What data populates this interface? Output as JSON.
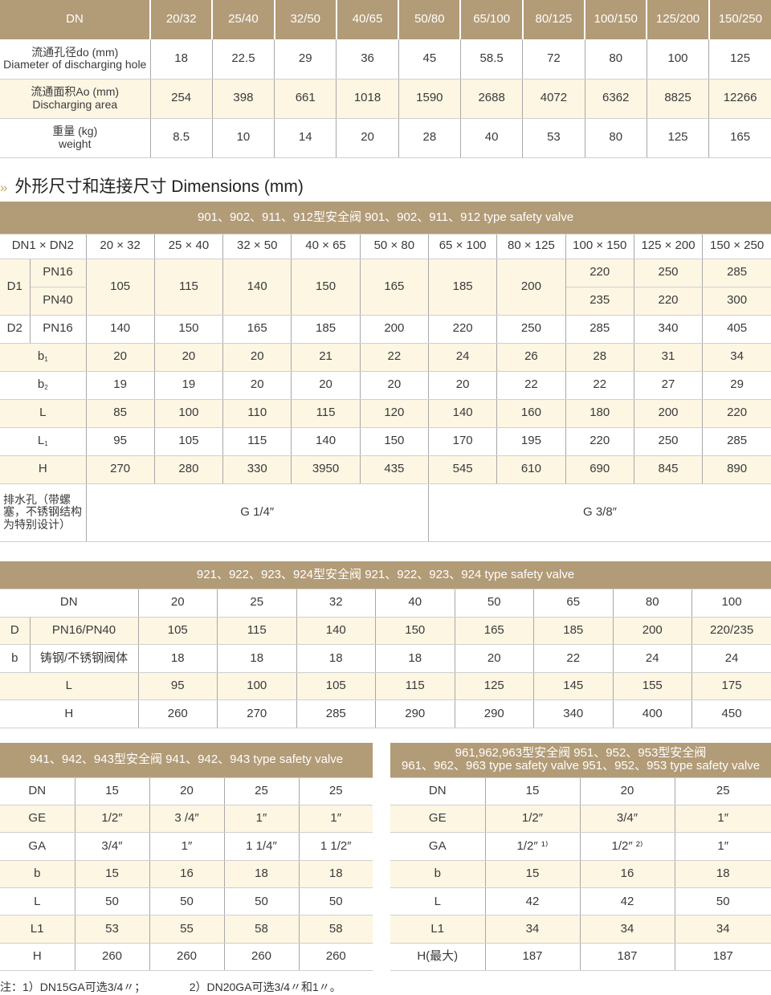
{
  "colors": {
    "header": "#b29b77",
    "stripe": "#fdf6e3"
  },
  "table1": {
    "header": [
      "DN",
      "20/32",
      "25/40",
      "32/50",
      "40/65",
      "50/80",
      "65/100",
      "80/125",
      "100/150",
      "125/200",
      "150/250"
    ],
    "rows": [
      {
        "label": [
          "流通孔径do (mm)",
          "Diameter of discharging hole"
        ],
        "values": [
          "18",
          "22.5",
          "29",
          "36",
          "45",
          "58.5",
          "72",
          "80",
          "100",
          "125"
        ]
      },
      {
        "label": [
          "流通面积Ao (mm)",
          "Discharging area"
        ],
        "values": [
          "254",
          "398",
          "661",
          "1018",
          "1590",
          "2688",
          "4072",
          "6362",
          "8825",
          "12266"
        ]
      },
      {
        "label": [
          "重量 (kg)",
          "weight"
        ],
        "values": [
          "8.5",
          "10",
          "14",
          "20",
          "28",
          "40",
          "53",
          "80",
          "125",
          "165"
        ]
      }
    ]
  },
  "section_heading": {
    "icon": "double-chevron-right",
    "text": "外形尺寸和连接尺寸  Dimensions (mm)"
  },
  "table2": {
    "caption": "901、902、911、912型安全阀  901、902、911、912 type safety valve",
    "header": [
      "DN1 × DN2",
      "20 × 32",
      "25 × 40",
      "32 × 50",
      "40 × 65",
      "50 × 80",
      "65 × 100",
      "80 × 125",
      "100 × 150",
      "125 × 200",
      "150 × 250"
    ],
    "d1": {
      "label": "D1",
      "pn16": "PN16",
      "pn40": "PN40",
      "shared": [
        "105",
        "115",
        "140",
        "150",
        "165",
        "185",
        "200"
      ],
      "pn16_values": [
        "220",
        "250",
        "285"
      ],
      "pn40_values": [
        "235",
        "220",
        "300"
      ]
    },
    "d2": {
      "label": "D2",
      "pn": "PN16",
      "values": [
        "140",
        "150",
        "165",
        "185",
        "200",
        "220",
        "250",
        "285",
        "340",
        "405"
      ]
    },
    "rows": [
      {
        "label": "b",
        "sub": "1",
        "values": [
          "20",
          "20",
          "20",
          "21",
          "22",
          "24",
          "26",
          "28",
          "31",
          "34"
        ]
      },
      {
        "label": "b",
        "sub": "2",
        "values": [
          "19",
          "19",
          "20",
          "20",
          "20",
          "20",
          "22",
          "22",
          "27",
          "29"
        ]
      },
      {
        "label": "L",
        "sub": "",
        "values": [
          "85",
          "100",
          "110",
          "115",
          "120",
          "140",
          "160",
          "180",
          "200",
          "220"
        ]
      },
      {
        "label": "L",
        "sub": "1",
        "values": [
          "95",
          "105",
          "115",
          "140",
          "150",
          "170",
          "195",
          "220",
          "250",
          "285"
        ]
      },
      {
        "label": "H",
        "sub": "",
        "values": [
          "270",
          "280",
          "330",
          "3950",
          "435",
          "545",
          "610",
          "690",
          "845",
          "890"
        ]
      }
    ],
    "drain": {
      "label": "排水孔（带螺塞，不锈钢结构为特别设计）",
      "small": "G 1/4″",
      "large": "G 3/8″"
    }
  },
  "table3": {
    "caption": "921、922、923、924型安全阀  921、922、923、924 type safety valve",
    "header": [
      "DN",
      "20",
      "25",
      "32",
      "40",
      "50",
      "65",
      "80",
      "100"
    ],
    "rows": [
      {
        "key": "D",
        "label": "PN16/PN40",
        "values": [
          "105",
          "115",
          "140",
          "150",
          "165",
          "185",
          "200",
          "220/235"
        ]
      },
      {
        "key": "b",
        "label": "铸钢/不锈钢阀体",
        "values": [
          "18",
          "18",
          "18",
          "18",
          "20",
          "22",
          "24",
          "24"
        ]
      },
      {
        "key": "",
        "label": "L",
        "values": [
          "95",
          "100",
          "105",
          "115",
          "125",
          "145",
          "155",
          "175"
        ]
      },
      {
        "key": "",
        "label": "H",
        "values": [
          "260",
          "270",
          "285",
          "290",
          "290",
          "340",
          "400",
          "450"
        ]
      }
    ]
  },
  "table4": {
    "caption": "941、942、943型安全阀  941、942、943 type safety valve",
    "rows": [
      {
        "label": "DN",
        "values": [
          "15",
          "20",
          "25",
          "25"
        ]
      },
      {
        "label": "GE",
        "values": [
          "1/2″",
          "3 /4″",
          "1″",
          "1″"
        ]
      },
      {
        "label": "GA",
        "values": [
          "3/4″",
          "1″",
          "1 1/4″",
          "1 1/2″"
        ]
      },
      {
        "label": "b",
        "values": [
          "15",
          "16",
          "18",
          "18"
        ]
      },
      {
        "label": "L",
        "values": [
          "50",
          "50",
          "50",
          "50"
        ]
      },
      {
        "label": "L1",
        "values": [
          "53",
          "55",
          "58",
          "58"
        ]
      },
      {
        "label": "H",
        "values": [
          "260",
          "260",
          "260",
          "260"
        ]
      }
    ]
  },
  "table5": {
    "caption_line1": "961,962,963型安全阀    951、952、953型安全阀",
    "caption_line2": "961、962、963 type safety valve    951、952、953 type safety valve",
    "rows": [
      {
        "label": "DN",
        "values": [
          "15",
          "20",
          "25"
        ]
      },
      {
        "label": "GE",
        "values": [
          "1/2″",
          "3/4″",
          "1″"
        ]
      },
      {
        "label": "GA",
        "values": [
          "1/2″ ¹⁾",
          "1/2″ ²⁾",
          "1″"
        ]
      },
      {
        "label": "b",
        "values": [
          "15",
          "16",
          "18"
        ]
      },
      {
        "label": "L",
        "values": [
          "42",
          "42",
          "50"
        ]
      },
      {
        "label": "L1",
        "values": [
          "34",
          "34",
          "34"
        ]
      },
      {
        "label": "H(最大)",
        "values": [
          "187",
          "187",
          "187"
        ]
      }
    ]
  },
  "note": "注：1）DN15GA可选3/4〃；              2）DN20GA可选3/4〃和1〃。"
}
